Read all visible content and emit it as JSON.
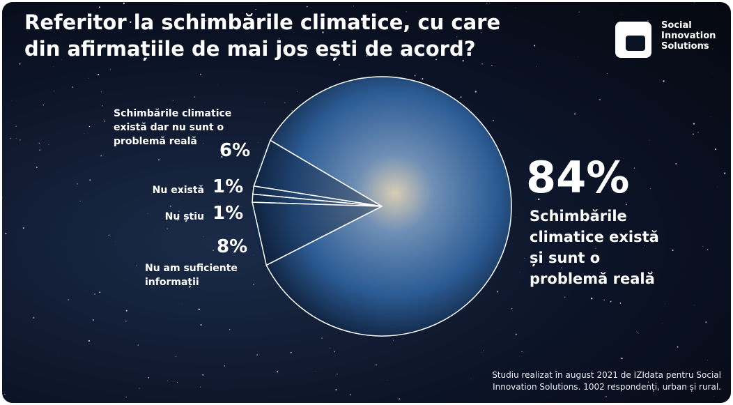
{
  "chart_data": {
    "type": "pie",
    "title": "Referitor la schimbările climatice, cu care din afirmațiile de mai jos ești de acord?",
    "logo": "Social Innovation Solutions",
    "categories": [
      "Schimbările climatice există și sunt o problemă reală",
      "Schimbările climatice există dar nu sunt o problemă reală",
      "Nu există",
      "Nu știu",
      "Nu am suficiente informații"
    ],
    "values": [
      84,
      6,
      1,
      1,
      8
    ],
    "value_labels": [
      "84%",
      "6%",
      "1%",
      "1%",
      "8%"
    ],
    "note": "Studiu realizat în august 2021 de IZIdata pentru Social Innovation Solutions. 1002 respondenți, urban și rural."
  }
}
